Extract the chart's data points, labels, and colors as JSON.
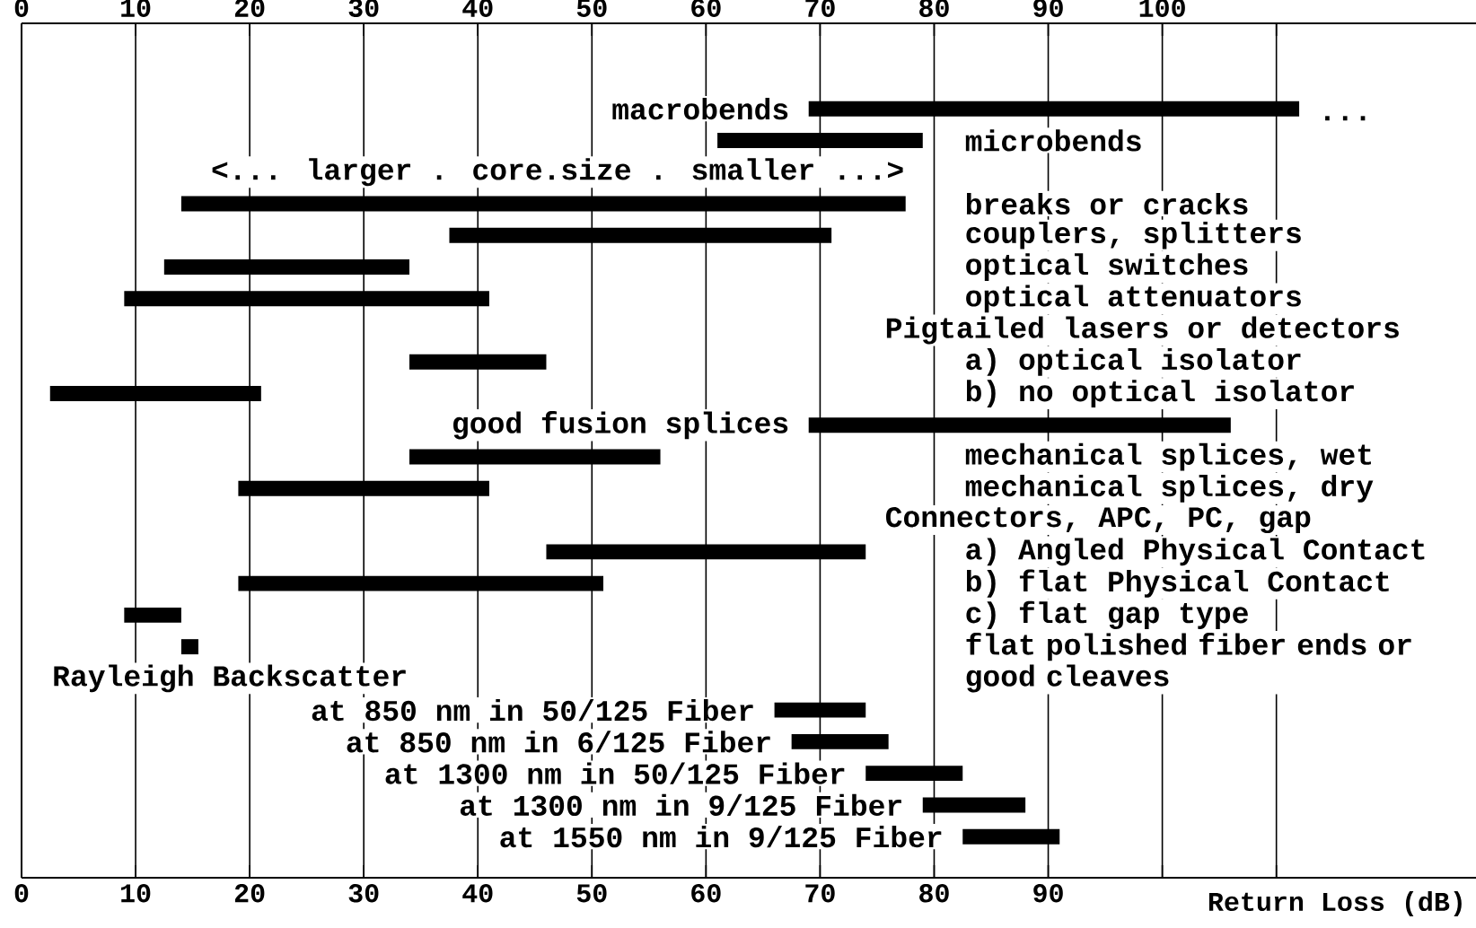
{
  "chart_data": {
    "type": "bar",
    "orientation": "horizontal",
    "color": "#000000",
    "grid": "x",
    "xlabel": "Return Loss (dB)",
    "categories": [
      "macrobends",
      "microbends",
      null,
      "breaks or cracks",
      "couplers, splitters",
      "optical switches",
      "optical attenuators",
      null,
      "a) optical isolator",
      "b) no optical isolator",
      "good fusion splices",
      "mechanical splices, wet",
      "mechanical splices, dry",
      null,
      "a) Angled Physical Contact",
      "b) flat Physical Contact",
      "c) flat gap type",
      "flat polished fiber ends or good cleaves",
      null,
      "at  850 nm in 50/125 Fiber",
      "at  850 nm in  6/125 Fiber",
      "at 1300 nm in 50/125 Fiber",
      "at 1300 nm in  9/125 Fiber",
      "at 1550 nm in  9/125 Fiber"
    ],
    "base": [
      69,
      61,
      null,
      14,
      37.5,
      12.5,
      9,
      null,
      34,
      2.5,
      69,
      34,
      19,
      null,
      46,
      19,
      9,
      14,
      null,
      66,
      67.5,
      74,
      79,
      82.5
    ],
    "values": [
      43,
      18,
      null,
      63.5,
      33.5,
      21.5,
      32,
      null,
      12,
      18.5,
      37,
      22,
      22,
      null,
      28,
      32,
      5,
      1.5,
      null,
      8,
      8.5,
      8.5,
      9,
      8.5
    ],
    "xlim": [
      0,
      127.5
    ],
    "xticks": [
      0,
      10,
      20,
      30,
      40,
      50,
      60,
      70,
      80,
      90,
      {
        "value": 100,
        "label": null
      },
      {
        "value": 110,
        "label": null
      }
    ],
    "x2lim": [
      0,
      127.5
    ],
    "x2ticks": [
      0,
      10,
      20,
      30,
      40,
      50,
      60,
      70,
      80,
      90,
      100,
      {
        "value": 110,
        "label": null
      }
    ],
    "annotations": [
      "<... larger . core.size . smaller ...>",
      "Pigtailed lasers or detectors",
      "Connectors, APC, PC, gap",
      "Rayleigh Backscatter",
      "..."
    ]
  }
}
